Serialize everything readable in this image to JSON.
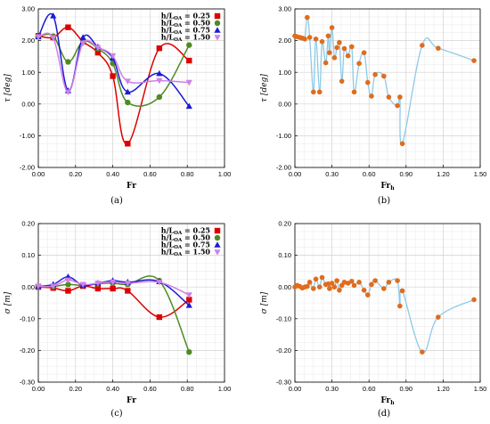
{
  "chart_data": [
    {
      "id": "a",
      "type": "line",
      "caption": "(a)",
      "xlabel": "Fr",
      "ylabel": "τ [deg]",
      "xlim": [
        0,
        1.0
      ],
      "ylim": [
        -2.0,
        3.0
      ],
      "xticks": [
        0.0,
        0.2,
        0.4,
        0.6,
        0.8,
        1.0
      ],
      "xtick_labels": [
        "0.00",
        "0.20",
        "0.40",
        "0.60",
        "0.80",
        "1.00"
      ],
      "yticks": [
        -2,
        -1,
        0,
        1,
        2,
        3
      ],
      "ytick_labels": [
        "-2.00",
        "-1.00",
        "0.00",
        "1.00",
        "2.00",
        "3.00"
      ],
      "grid": true,
      "legend": "top-right",
      "series": [
        {
          "name": "h/L_OA = 0.25",
          "color": "#dd0000",
          "marker": "square",
          "x": [
            0.0,
            0.08,
            0.16,
            0.24,
            0.32,
            0.4,
            0.48,
            0.65,
            0.81
          ],
          "y": [
            2.15,
            2.1,
            2.42,
            1.97,
            1.62,
            0.88,
            -1.25,
            1.76,
            1.37
          ]
        },
        {
          "name": "h/L_OA = 0.50",
          "color": "#4e8a22",
          "marker": "circle",
          "x": [
            0.0,
            0.08,
            0.16,
            0.24,
            0.32,
            0.4,
            0.48,
            0.65,
            0.81
          ],
          "y": [
            2.13,
            2.14,
            1.33,
            1.97,
            1.75,
            1.28,
            0.05,
            0.22,
            1.86
          ]
        },
        {
          "name": "h/L_OA = 0.75",
          "color": "#1a1ad6",
          "marker": "triangle",
          "x": [
            0.0,
            0.08,
            0.16,
            0.24,
            0.32,
            0.4,
            0.48,
            0.65,
            0.81
          ],
          "y": [
            2.12,
            2.78,
            0.42,
            2.1,
            1.8,
            1.45,
            0.38,
            0.96,
            -0.07
          ]
        },
        {
          "name": "h/L_OA = 1.50",
          "color": "#d080e8",
          "marker": "triangle-down",
          "x": [
            0.0,
            0.08,
            0.16,
            0.24,
            0.32,
            0.4,
            0.48,
            0.65,
            0.81
          ],
          "y": [
            2.12,
            2.09,
            0.38,
            1.92,
            1.78,
            1.52,
            0.72,
            0.74,
            0.68
          ]
        }
      ]
    },
    {
      "id": "b",
      "type": "scatter",
      "caption": "(b)",
      "xlabel": "Fr_h",
      "ylabel": "τ [deg]",
      "xlim": [
        0,
        1.5
      ],
      "ylim": [
        -2.0,
        3.0
      ],
      "xticks": [
        0.0,
        0.3,
        0.6,
        0.9,
        1.2,
        1.5
      ],
      "xtick_labels": [
        "0.00",
        "0.30",
        "0.60",
        "0.90",
        "1.20",
        "1.50"
      ],
      "yticks": [
        -2,
        -1,
        0,
        1,
        2,
        3
      ],
      "ytick_labels": [
        "-2.00",
        "-1.00",
        "0.00",
        "1.00",
        "2.00",
        "3.00"
      ],
      "grid": true,
      "point_color": "#e06c1c",
      "line_color": "#8ecae6",
      "x": [
        0.0,
        0.02,
        0.04,
        0.06,
        0.08,
        0.1,
        0.12,
        0.15,
        0.17,
        0.2,
        0.22,
        0.25,
        0.27,
        0.28,
        0.3,
        0.32,
        0.34,
        0.36,
        0.38,
        0.4,
        0.43,
        0.46,
        0.48,
        0.52,
        0.56,
        0.59,
        0.62,
        0.65,
        0.72,
        0.76,
        0.83,
        0.85,
        0.87,
        1.03,
        1.16,
        1.45
      ],
      "y": [
        2.15,
        2.12,
        2.1,
        2.08,
        2.05,
        2.73,
        2.1,
        0.38,
        2.05,
        0.38,
        1.97,
        1.3,
        2.15,
        1.62,
        2.41,
        1.46,
        1.78,
        1.94,
        0.72,
        1.75,
        1.52,
        1.81,
        0.38,
        1.28,
        1.62,
        0.68,
        0.25,
        0.93,
        0.88,
        0.22,
        -0.05,
        0.22,
        -1.25,
        1.85,
        1.76,
        1.37
      ]
    },
    {
      "id": "c",
      "type": "line",
      "caption": "(c)",
      "xlabel": "Fr",
      "ylabel": "σ [m]",
      "xlim": [
        0,
        1.0
      ],
      "ylim": [
        -0.3,
        0.2
      ],
      "xticks": [
        0.0,
        0.2,
        0.4,
        0.6,
        0.8,
        1.0
      ],
      "xtick_labels": [
        "0.00",
        "0.20",
        "0.40",
        "0.60",
        "0.80",
        "1.00"
      ],
      "yticks": [
        -0.3,
        -0.2,
        -0.1,
        0.0,
        0.1,
        0.2
      ],
      "ytick_labels": [
        "-0.30",
        "-0.20",
        "-0.10",
        "0.00",
        "0.10",
        "0.20"
      ],
      "grid": true,
      "legend": "top-right",
      "series": [
        {
          "name": "h/L_OA = 0.25",
          "color": "#dd0000",
          "marker": "square",
          "x": [
            0.0,
            0.08,
            0.16,
            0.24,
            0.32,
            0.4,
            0.48,
            0.65,
            0.81
          ],
          "y": [
            0.0,
            -0.003,
            -0.012,
            0.003,
            -0.005,
            -0.005,
            -0.012,
            -0.095,
            -0.04
          ]
        },
        {
          "name": "h/L_OA = 0.50",
          "color": "#4e8a22",
          "marker": "circle",
          "x": [
            0.0,
            0.08,
            0.16,
            0.24,
            0.32,
            0.4,
            0.48,
            0.65,
            0.81
          ],
          "y": [
            0.0,
            0.002,
            0.008,
            0.005,
            0.01,
            0.012,
            0.008,
            0.02,
            -0.205
          ]
        },
        {
          "name": "h/L_OA = 0.75",
          "color": "#1a1ad6",
          "marker": "triangle",
          "x": [
            0.0,
            0.08,
            0.16,
            0.24,
            0.32,
            0.4,
            0.48,
            0.65,
            0.81
          ],
          "y": [
            0.002,
            0.008,
            0.032,
            0.005,
            0.012,
            0.02,
            0.015,
            0.017,
            -0.058
          ]
        },
        {
          "name": "h/L_OA = 1.50",
          "color": "#d080e8",
          "marker": "triangle-down",
          "x": [
            0.0,
            0.08,
            0.16,
            0.24,
            0.32,
            0.4,
            0.48,
            0.65,
            0.81
          ],
          "y": [
            0.003,
            0.003,
            0.022,
            0.008,
            0.012,
            0.016,
            0.012,
            0.015,
            -0.025
          ]
        }
      ]
    },
    {
      "id": "d",
      "type": "scatter",
      "caption": "(d)",
      "xlabel": "Fr_h",
      "ylabel": "σ [m]",
      "xlim": [
        0,
        1.5
      ],
      "ylim": [
        -0.3,
        0.2
      ],
      "xticks": [
        0.0,
        0.3,
        0.6,
        0.9,
        1.2,
        1.5
      ],
      "xtick_labels": [
        "0.00",
        "0.30",
        "0.60",
        "0.90",
        "1.20",
        "1.50"
      ],
      "yticks": [
        -0.3,
        -0.2,
        -0.1,
        0.0,
        0.1,
        0.2
      ],
      "ytick_labels": [
        "-0.30",
        "-0.20",
        "-0.10",
        "0.00",
        "0.10",
        "0.20"
      ],
      "grid": true,
      "point_color": "#e06c1c",
      "line_color": "#8ecae6",
      "x": [
        0.0,
        0.02,
        0.04,
        0.06,
        0.08,
        0.1,
        0.12,
        0.15,
        0.17,
        0.2,
        0.22,
        0.25,
        0.27,
        0.28,
        0.3,
        0.32,
        0.34,
        0.36,
        0.38,
        0.4,
        0.43,
        0.46,
        0.48,
        0.52,
        0.56,
        0.59,
        0.62,
        0.65,
        0.72,
        0.76,
        0.83,
        0.85,
        0.87,
        1.03,
        1.16,
        1.45
      ],
      "y": [
        0.0,
        0.005,
        0.002,
        -0.003,
        0.0,
        0.002,
        0.015,
        -0.005,
        0.025,
        0.0,
        0.03,
        0.008,
        0.01,
        -0.005,
        0.012,
        0.0,
        0.02,
        -0.01,
        0.005,
        0.015,
        0.012,
        0.018,
        0.005,
        0.015,
        -0.01,
        -0.025,
        0.008,
        0.02,
        -0.005,
        0.015,
        0.02,
        -0.06,
        -0.012,
        -0.205,
        -0.095,
        -0.04
      ]
    }
  ]
}
